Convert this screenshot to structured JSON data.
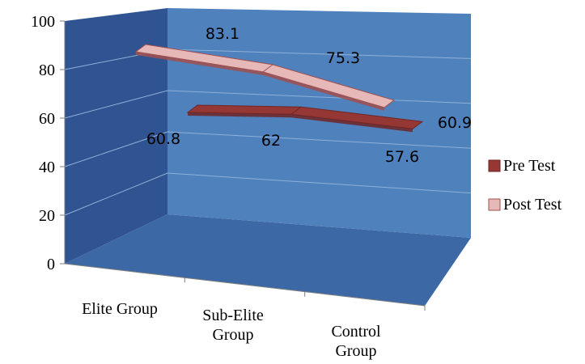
{
  "chart_data": {
    "type": "line",
    "title": "",
    "xlabel": "",
    "ylabel": "",
    "categories": [
      [
        "Elite Group"
      ],
      [
        "Sub-Elite",
        "Group"
      ],
      [
        "Control",
        "Group"
      ]
    ],
    "ylim": [
      0,
      100
    ],
    "yticks": [
      "0",
      "20",
      "40",
      "60",
      "80",
      "100"
    ],
    "grid": true,
    "legend_position": "right",
    "series": [
      {
        "name": "Pre Test",
        "values": [
          60.8,
          62,
          57.6
        ],
        "labels": [
          "60.8",
          "62",
          "57.6"
        ],
        "color": "#953735",
        "edge": "#6f2625"
      },
      {
        "name": "Post Test",
        "values": [
          83.1,
          75.3,
          60.9
        ],
        "labels": [
          "83.1",
          "75.3",
          "60.9"
        ],
        "color": "#e6b9b8",
        "edge": "#a05050"
      }
    ],
    "colors": {
      "back_wall": "#4f81bd",
      "side_wall": "#2f5491",
      "floor": "#3d68a6",
      "grid": "#8fb0d8"
    }
  }
}
